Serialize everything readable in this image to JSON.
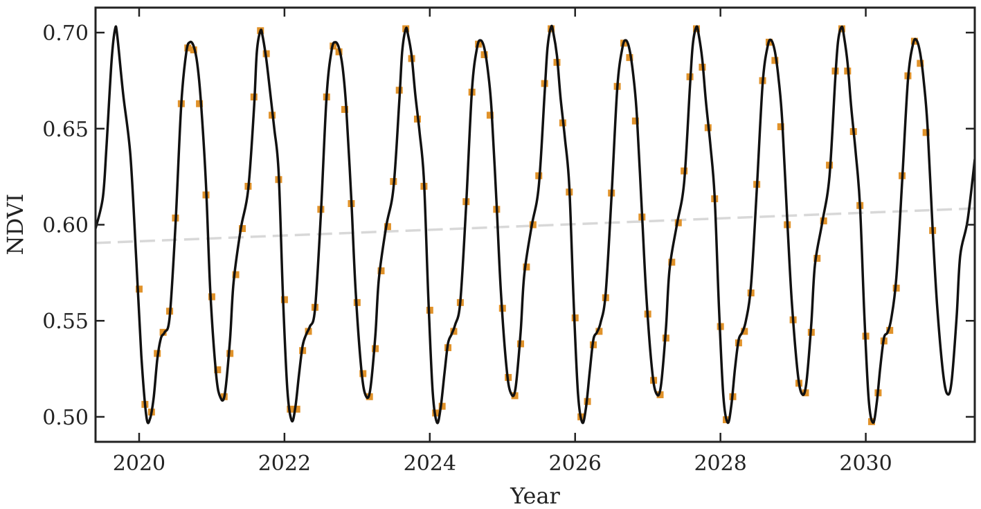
{
  "chart_data": {
    "type": "line",
    "xlabel": "Year",
    "ylabel": "NDVI",
    "xlim": [
      2019.4,
      2031.5
    ],
    "ylim": [
      0.487,
      0.713
    ],
    "x_ticks": [
      2020,
      2022,
      2024,
      2026,
      2028,
      2030
    ],
    "x_tick_labels": [
      "2020",
      "2022",
      "2024",
      "2026",
      "2028",
      "2030"
    ],
    "y_ticks": [
      0.5,
      0.55,
      0.6,
      0.65,
      0.7
    ],
    "y_tick_labels": [
      "0.50",
      "0.55",
      "0.60",
      "0.65",
      "0.70"
    ],
    "grid": false,
    "colors": {
      "fitted_curve": "#111111",
      "observed_points": "#e0922a",
      "trend_line": "#d8d8d8",
      "axes": "#222222"
    },
    "observed_points": [
      [
        2020.0,
        0.5665
      ],
      [
        2020.08,
        0.5065
      ],
      [
        2020.17,
        0.5025
      ],
      [
        2020.25,
        0.533
      ],
      [
        2020.33,
        0.544
      ],
      [
        2020.42,
        0.555
      ],
      [
        2020.5,
        0.6035
      ],
      [
        2020.58,
        0.663
      ],
      [
        2020.67,
        0.692
      ],
      [
        2020.75,
        0.691
      ],
      [
        2020.83,
        0.663
      ],
      [
        2020.92,
        0.6155
      ],
      [
        2021.0,
        0.5625
      ],
      [
        2021.08,
        0.5245
      ],
      [
        2021.17,
        0.5105
      ],
      [
        2021.25,
        0.533
      ],
      [
        2021.33,
        0.574
      ],
      [
        2021.42,
        0.598
      ],
      [
        2021.5,
        0.62
      ],
      [
        2021.58,
        0.6665
      ],
      [
        2021.67,
        0.701
      ],
      [
        2021.75,
        0.689
      ],
      [
        2021.83,
        0.657
      ],
      [
        2021.92,
        0.6235
      ],
      [
        2022.0,
        0.561
      ],
      [
        2022.08,
        0.504
      ],
      [
        2022.17,
        0.504
      ],
      [
        2022.25,
        0.5345
      ],
      [
        2022.33,
        0.5445
      ],
      [
        2022.42,
        0.557
      ],
      [
        2022.5,
        0.608
      ],
      [
        2022.58,
        0.6665
      ],
      [
        2022.67,
        0.693
      ],
      [
        2022.75,
        0.69
      ],
      [
        2022.83,
        0.66
      ],
      [
        2022.92,
        0.611
      ],
      [
        2023.0,
        0.5595
      ],
      [
        2023.08,
        0.5225
      ],
      [
        2023.17,
        0.5105
      ],
      [
        2023.25,
        0.5355
      ],
      [
        2023.33,
        0.576
      ],
      [
        2023.42,
        0.599
      ],
      [
        2023.5,
        0.6225
      ],
      [
        2023.58,
        0.67
      ],
      [
        2023.67,
        0.702
      ],
      [
        2023.75,
        0.6865
      ],
      [
        2023.83,
        0.655
      ],
      [
        2023.92,
        0.62
      ],
      [
        2024.0,
        0.5555
      ],
      [
        2024.08,
        0.502
      ],
      [
        2024.17,
        0.5055
      ],
      [
        2024.25,
        0.536
      ],
      [
        2024.33,
        0.5445
      ],
      [
        2024.42,
        0.5595
      ],
      [
        2024.5,
        0.612
      ],
      [
        2024.58,
        0.669
      ],
      [
        2024.67,
        0.694
      ],
      [
        2024.75,
        0.6885
      ],
      [
        2024.83,
        0.657
      ],
      [
        2024.92,
        0.608
      ],
      [
        2025.0,
        0.5565
      ],
      [
        2025.08,
        0.5205
      ],
      [
        2025.17,
        0.511
      ],
      [
        2025.25,
        0.538
      ],
      [
        2025.33,
        0.578
      ],
      [
        2025.42,
        0.6
      ],
      [
        2025.5,
        0.6255
      ],
      [
        2025.58,
        0.6735
      ],
      [
        2025.67,
        0.702
      ],
      [
        2025.75,
        0.6845
      ],
      [
        2025.83,
        0.653
      ],
      [
        2025.92,
        0.617
      ],
      [
        2026.0,
        0.5515
      ],
      [
        2026.08,
        0.5
      ],
      [
        2026.17,
        0.508
      ],
      [
        2026.25,
        0.5375
      ],
      [
        2026.33,
        0.5445
      ],
      [
        2026.42,
        0.562
      ],
      [
        2026.5,
        0.6165
      ],
      [
        2026.58,
        0.672
      ],
      [
        2026.67,
        0.6945
      ],
      [
        2026.75,
        0.687
      ],
      [
        2026.83,
        0.654
      ],
      [
        2026.92,
        0.604
      ],
      [
        2027.0,
        0.5535
      ],
      [
        2027.08,
        0.519
      ],
      [
        2027.17,
        0.5115
      ],
      [
        2027.25,
        0.541
      ],
      [
        2027.33,
        0.5805
      ],
      [
        2027.42,
        0.601
      ],
      [
        2027.5,
        0.628
      ],
      [
        2027.58,
        0.677
      ],
      [
        2027.67,
        0.702
      ],
      [
        2027.75,
        0.682
      ],
      [
        2027.83,
        0.6505
      ],
      [
        2027.92,
        0.6135
      ],
      [
        2028.0,
        0.547
      ],
      [
        2028.08,
        0.4985
      ],
      [
        2028.17,
        0.5105
      ],
      [
        2028.25,
        0.5385
      ],
      [
        2028.33,
        0.5445
      ],
      [
        2028.42,
        0.5645
      ],
      [
        2028.5,
        0.621
      ],
      [
        2028.58,
        0.675
      ],
      [
        2028.67,
        0.695
      ],
      [
        2028.75,
        0.6855
      ],
      [
        2028.83,
        0.651
      ],
      [
        2028.92,
        0.6
      ],
      [
        2029.0,
        0.5505
      ],
      [
        2029.08,
        0.5175
      ],
      [
        2029.17,
        0.5125
      ],
      [
        2029.25,
        0.544
      ],
      [
        2029.33,
        0.5825
      ],
      [
        2029.42,
        0.602
      ],
      [
        2029.5,
        0.631
      ],
      [
        2029.58,
        0.68
      ],
      [
        2029.67,
        0.702
      ],
      [
        2029.75,
        0.68
      ],
      [
        2029.83,
        0.6485
      ],
      [
        2029.92,
        0.61
      ],
      [
        2030.0,
        0.542
      ],
      [
        2030.08,
        0.4975
      ],
      [
        2030.17,
        0.5125
      ],
      [
        2030.25,
        0.5395
      ],
      [
        2030.33,
        0.545
      ],
      [
        2030.42,
        0.567
      ],
      [
        2030.5,
        0.6255
      ],
      [
        2030.58,
        0.6775
      ],
      [
        2030.67,
        0.6955
      ],
      [
        2030.75,
        0.684
      ],
      [
        2030.83,
        0.648
      ],
      [
        2030.92,
        0.597
      ]
    ],
    "fitted_curve": {
      "x": [
        2019.4,
        2019.5,
        2019.55,
        2019.62,
        2019.67,
        2019.7,
        2019.78,
        2019.88,
        2019.96,
        2020.03,
        2020.1,
        2020.15,
        2020.2,
        2020.25,
        2020.3,
        2020.35,
        2020.42,
        2020.5,
        2020.58,
        2020.65,
        2020.7,
        2020.75,
        2020.8,
        2020.85,
        2020.92,
        2020.98,
        2021.06,
        2021.12,
        2021.18,
        2021.25,
        2021.3,
        2021.4,
        2021.5,
        2021.58,
        2021.62,
        2021.67,
        2021.7,
        2021.75,
        2021.8,
        2021.86,
        2021.92,
        2021.98,
        2022.04,
        2022.1,
        2022.15,
        2022.2,
        2022.25,
        2022.3,
        2022.35,
        2022.42,
        2022.5,
        2022.58,
        2022.65,
        2022.7,
        2022.75,
        2022.8,
        2022.85,
        2022.92,
        2022.98,
        2023.06,
        2023.12,
        2023.18,
        2023.25,
        2023.3,
        2023.4,
        2023.5,
        2023.58,
        2023.62,
        2023.67,
        2023.7,
        2023.75,
        2023.8,
        2023.86,
        2023.92,
        2023.98,
        2024.04,
        2024.1,
        2024.15,
        2024.2,
        2024.25,
        2024.3,
        2024.35,
        2024.42,
        2024.5,
        2024.58,
        2024.65,
        2024.7,
        2024.75,
        2024.8,
        2024.85,
        2024.92,
        2024.98,
        2025.06,
        2025.12,
        2025.18,
        2025.25,
        2025.3,
        2025.4,
        2025.5,
        2025.58,
        2025.62,
        2025.67,
        2025.7,
        2025.75,
        2025.8,
        2025.86,
        2025.92,
        2025.98,
        2026.04,
        2026.1,
        2026.15,
        2026.2,
        2026.25,
        2026.3,
        2026.35,
        2026.42,
        2026.5,
        2026.58,
        2026.65,
        2026.7,
        2026.75,
        2026.8,
        2026.85,
        2026.92,
        2026.98,
        2027.06,
        2027.12,
        2027.18,
        2027.25,
        2027.3,
        2027.4,
        2027.5,
        2027.58,
        2027.62,
        2027.67,
        2027.7,
        2027.75,
        2027.8,
        2027.86,
        2027.92,
        2027.98,
        2028.04,
        2028.1,
        2028.15,
        2028.2,
        2028.25,
        2028.3,
        2028.35,
        2028.42,
        2028.5,
        2028.58,
        2028.65,
        2028.7,
        2028.75,
        2028.8,
        2028.85,
        2028.92,
        2028.98,
        2029.06,
        2029.12,
        2029.18,
        2029.25,
        2029.3,
        2029.4,
        2029.5,
        2029.58,
        2029.62,
        2029.67,
        2029.7,
        2029.75,
        2029.8,
        2029.86,
        2029.92,
        2029.98,
        2030.04,
        2030.1,
        2030.15,
        2030.2,
        2030.25,
        2030.3,
        2030.35,
        2030.42,
        2030.5,
        2030.58,
        2030.65,
        2030.7,
        2030.75,
        2030.8,
        2030.85,
        2030.92,
        2030.98,
        2031.06,
        2031.12,
        2031.18,
        2031.25,
        2031.3,
        2031.4,
        2031.5
      ],
      "y": [
        0.598,
        0.614,
        0.64,
        0.685,
        0.702,
        0.698,
        0.668,
        0.636,
        0.582,
        0.532,
        0.5,
        0.499,
        0.51,
        0.53,
        0.541,
        0.544,
        0.552,
        0.6,
        0.663,
        0.69,
        0.695,
        0.693,
        0.684,
        0.664,
        0.621,
        0.565,
        0.522,
        0.51,
        0.512,
        0.54,
        0.57,
        0.598,
        0.618,
        0.66,
        0.69,
        0.701,
        0.698,
        0.686,
        0.67,
        0.65,
        0.627,
        0.562,
        0.514,
        0.498,
        0.505,
        0.522,
        0.537,
        0.543,
        0.547,
        0.556,
        0.605,
        0.667,
        0.691,
        0.695,
        0.692,
        0.682,
        0.661,
        0.613,
        0.565,
        0.524,
        0.511,
        0.514,
        0.542,
        0.572,
        0.599,
        0.619,
        0.664,
        0.69,
        0.702,
        0.699,
        0.688,
        0.668,
        0.648,
        0.623,
        0.562,
        0.513,
        0.497,
        0.505,
        0.522,
        0.538,
        0.543,
        0.548,
        0.56,
        0.61,
        0.67,
        0.692,
        0.696,
        0.692,
        0.68,
        0.66,
        0.61,
        0.564,
        0.524,
        0.512,
        0.515,
        0.544,
        0.574,
        0.599,
        0.62,
        0.668,
        0.692,
        0.703,
        0.7,
        0.688,
        0.666,
        0.645,
        0.62,
        0.56,
        0.512,
        0.497,
        0.505,
        0.523,
        0.54,
        0.544,
        0.549,
        0.564,
        0.614,
        0.671,
        0.692,
        0.696,
        0.691,
        0.678,
        0.657,
        0.606,
        0.563,
        0.524,
        0.512,
        0.516,
        0.546,
        0.577,
        0.6,
        0.622,
        0.672,
        0.694,
        0.703,
        0.699,
        0.686,
        0.664,
        0.642,
        0.615,
        0.557,
        0.511,
        0.497,
        0.506,
        0.525,
        0.54,
        0.544,
        0.55,
        0.568,
        0.618,
        0.673,
        0.693,
        0.696,
        0.69,
        0.676,
        0.654,
        0.602,
        0.561,
        0.524,
        0.512,
        0.517,
        0.548,
        0.579,
        0.601,
        0.625,
        0.676,
        0.696,
        0.703,
        0.698,
        0.684,
        0.661,
        0.638,
        0.61,
        0.553,
        0.509,
        0.497,
        0.507,
        0.526,
        0.541,
        0.544,
        0.551,
        0.572,
        0.622,
        0.675,
        0.694,
        0.696,
        0.689,
        0.674,
        0.651,
        0.598,
        0.559,
        0.524,
        0.512,
        0.518,
        0.552,
        0.584,
        0.602,
        0.634
      ]
    },
    "trend_line": {
      "x": [
        2019.4,
        2031.5
      ],
      "y": [
        0.5905,
        0.6085
      ]
    }
  }
}
